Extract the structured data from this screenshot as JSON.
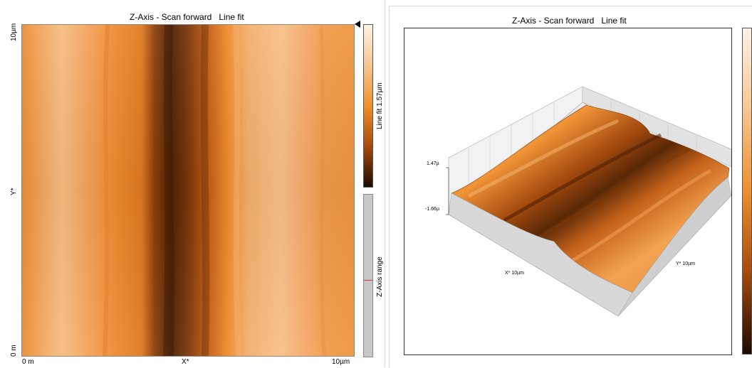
{
  "left": {
    "title": "Z-Axis - Scan forward",
    "mode": "Line fit",
    "y_top": "10µm",
    "y_mid": "Y*",
    "y_bottom": "0 m",
    "x_left": "0 m",
    "x_mid": "X*",
    "x_right": "10µm",
    "colorbar_label": "Line fit 1.57µm",
    "range_label": "Z-Axis range"
  },
  "right": {
    "title": "Z-Axis - Scan forward",
    "mode": "Line fit",
    "z_max": "1.47µ",
    "z_min": "-1.66µ",
    "x_label": "X* 10µm",
    "y_label": "Y* 10µm"
  },
  "colors": {
    "orange_light": "#f8c48a",
    "orange_mid": "#f0922f",
    "orange_dark": "#6a2e05",
    "range_marker": "#e03a2a"
  }
}
